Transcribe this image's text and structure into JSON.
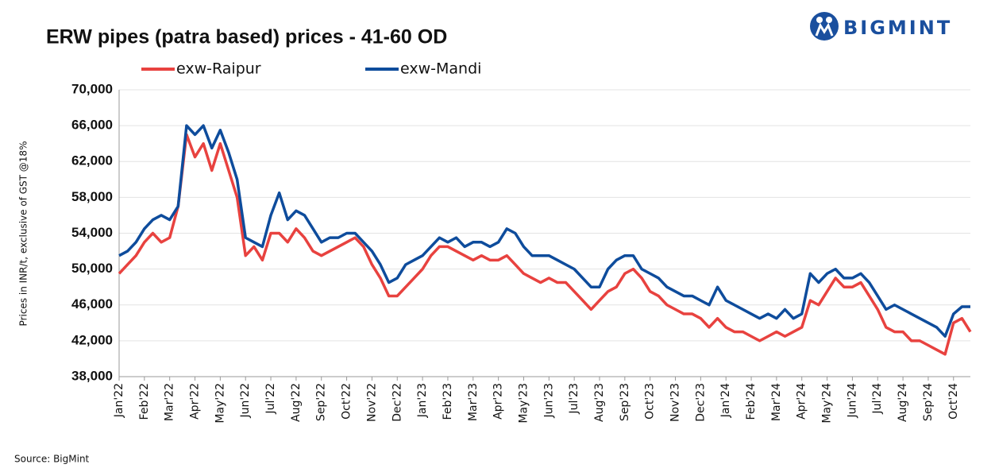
{
  "chart_data": {
    "type": "line",
    "title": "ERW pipes (patra based) prices - 41-60 OD",
    "y_label": "Prices in INR/t, exclusive of GST @18%",
    "source": "Source: BigMint",
    "logo": "BIGMINT",
    "categories": [
      "Jan'22",
      null,
      null,
      "Feb'22",
      null,
      null,
      "Mar'22",
      null,
      null,
      "Apr'22",
      null,
      null,
      "May'22",
      null,
      null,
      "Jun'22",
      null,
      null,
      "Jul'22",
      null,
      null,
      "Aug'22",
      null,
      null,
      "Sep'22",
      null,
      null,
      "Oct'22",
      null,
      null,
      "Nov'22",
      null,
      null,
      "Dec'22",
      null,
      null,
      "Jan'23",
      null,
      null,
      "Feb'23",
      null,
      null,
      "Mar'23",
      null,
      null,
      "Apr'23",
      null,
      null,
      "May'23",
      null,
      null,
      "Jun'23",
      null,
      null,
      "Jul'23",
      null,
      null,
      "Aug'23",
      null,
      null,
      "Sep'23",
      null,
      null,
      "Oct'23",
      null,
      null,
      "Nov'23",
      null,
      null,
      "Dec'23",
      null,
      null,
      "Jan'24",
      null,
      null,
      "Feb'24",
      null,
      null,
      "Mar'24",
      null,
      null,
      "Apr'24",
      null,
      null,
      "May'24",
      null,
      null,
      "Jun'24",
      null,
      null,
      "Jul'24",
      null,
      null,
      "Aug'24",
      null,
      null,
      "Sep'24",
      null,
      null,
      "Oct'24",
      null,
      null
    ],
    "series": [
      {
        "name": "exw-Raipur",
        "color": "#e8423f",
        "values": [
          49500,
          50500,
          51500,
          53000,
          54000,
          53000,
          53500,
          57000,
          65000,
          62500,
          64000,
          61000,
          64000,
          61000,
          58000,
          51500,
          52500,
          51000,
          54000,
          54000,
          53000,
          54500,
          53500,
          52000,
          51500,
          52000,
          52500,
          53000,
          53500,
          52500,
          50500,
          49000,
          47000,
          47000,
          48000,
          49000,
          50000,
          51500,
          52500,
          52500,
          52000,
          51500,
          51000,
          51500,
          51000,
          51000,
          51500,
          50500,
          49500,
          49000,
          48500,
          49000,
          48500,
          48500,
          47500,
          46500,
          45500,
          46500,
          47500,
          48000,
          49500,
          50000,
          49000,
          47500,
          47000,
          46000,
          45500,
          45000,
          45000,
          44500,
          43500,
          44500,
          43500,
          43000,
          43000,
          42500,
          42000,
          42500,
          43000,
          42500,
          43000,
          43500,
          46500,
          46000,
          47500,
          49000,
          48000,
          48000,
          48500,
          47000,
          45500,
          43500,
          43000,
          43000,
          42000,
          42000,
          41500,
          41000,
          40500,
          44000,
          44500,
          43000
        ]
      },
      {
        "name": "exw-Mandi",
        "color": "#0e4c9c",
        "values": [
          51500,
          52000,
          53000,
          54500,
          55500,
          56000,
          55500,
          57000,
          66000,
          65000,
          66000,
          63500,
          65500,
          63000,
          60000,
          53500,
          53000,
          52500,
          56000,
          58500,
          55500,
          56500,
          56000,
          54500,
          53000,
          53500,
          53500,
          54000,
          54000,
          53000,
          52000,
          50500,
          48500,
          49000,
          50500,
          51000,
          51500,
          52500,
          53500,
          53000,
          53500,
          52500,
          53000,
          53000,
          52500,
          53000,
          54500,
          54000,
          52500,
          51500,
          51500,
          51500,
          51000,
          50500,
          50000,
          49000,
          48000,
          48000,
          50000,
          51000,
          51500,
          51500,
          50000,
          49500,
          49000,
          48000,
          47500,
          47000,
          47000,
          46500,
          46000,
          48000,
          46500,
          46000,
          45500,
          45000,
          44500,
          45000,
          44500,
          45500,
          44500,
          45000,
          49500,
          48500,
          49500,
          50000,
          49000,
          49000,
          49500,
          48500,
          47000,
          45500,
          46000,
          45500,
          45000,
          44500,
          44000,
          43500,
          42500,
          45000,
          45800,
          45800
        ]
      }
    ],
    "ylim": [
      38000,
      70000
    ],
    "yticks": [
      {
        "value": 38000,
        "label": "38,000"
      },
      {
        "value": 42000,
        "label": "42,000"
      },
      {
        "value": 46000,
        "label": "46,000"
      },
      {
        "value": 50000,
        "label": "50,000"
      },
      {
        "value": 54000,
        "label": "54,000"
      },
      {
        "value": 58000,
        "label": "58,000"
      },
      {
        "value": 62000,
        "label": "62,000"
      },
      {
        "value": 66000,
        "label": "66,000"
      },
      {
        "value": 70000,
        "label": "70,000"
      }
    ],
    "grid": true
  }
}
